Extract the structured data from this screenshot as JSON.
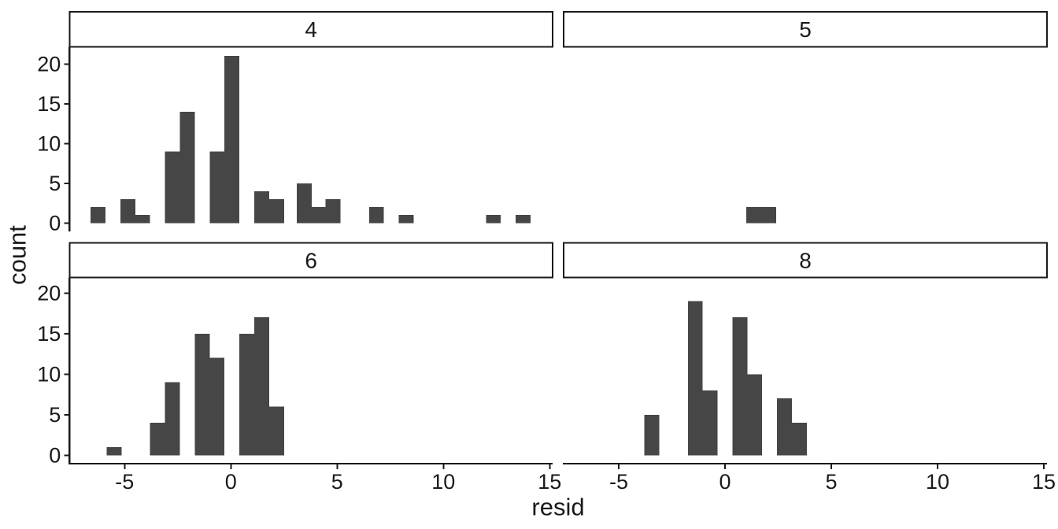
{
  "chart_data": {
    "type": "bar",
    "subtype": "faceted-histogram",
    "title": "",
    "xlabel": "resid",
    "ylabel": "count",
    "x_ticks": [
      -5,
      0,
      5,
      10,
      15
    ],
    "y_ticks": [
      0,
      5,
      10,
      15,
      20
    ],
    "x_range": [
      -7.6,
      15.15
    ],
    "y_range": [
      -1.05,
      22.2
    ],
    "binwidth": 0.7,
    "grid": false,
    "legend_position": "none",
    "colors": {
      "bar_fill": "#464646",
      "axis_line": "#1a1a1a",
      "text": "#1a1a1a",
      "strip_border": "#1a1a1a",
      "strip_fill": "#ffffff",
      "background": "#ffffff"
    },
    "facets": [
      {
        "label": "4",
        "bins": [
          {
            "x": -6.25,
            "n": 2
          },
          {
            "x": -4.85,
            "n": 3
          },
          {
            "x": -4.15,
            "n": 1
          },
          {
            "x": -2.75,
            "n": 9
          },
          {
            "x": -2.05,
            "n": 14
          },
          {
            "x": -0.65,
            "n": 9
          },
          {
            "x": 0.05,
            "n": 21
          },
          {
            "x": 1.45,
            "n": 4
          },
          {
            "x": 2.15,
            "n": 3
          },
          {
            "x": 3.45,
            "n": 5
          },
          {
            "x": 4.1,
            "n": 2
          },
          {
            "x": 4.8,
            "n": 3
          },
          {
            "x": 6.85,
            "n": 2
          },
          {
            "x": 8.25,
            "n": 1
          },
          {
            "x": 12.35,
            "n": 1
          },
          {
            "x": 13.75,
            "n": 1
          }
        ]
      },
      {
        "label": "5",
        "bins": [
          {
            "x": 1.35,
            "n": 2
          },
          {
            "x": 2.05,
            "n": 2
          }
        ]
      },
      {
        "label": "6",
        "bins": [
          {
            "x": -5.5,
            "n": 1
          },
          {
            "x": -3.45,
            "n": 4
          },
          {
            "x": -2.75,
            "n": 9
          },
          {
            "x": -1.35,
            "n": 15
          },
          {
            "x": -0.65,
            "n": 12
          },
          {
            "x": 0.75,
            "n": 15
          },
          {
            "x": 1.45,
            "n": 17
          },
          {
            "x": 2.15,
            "n": 6
          }
        ]
      },
      {
        "label": "8",
        "bins": [
          {
            "x": -3.45,
            "n": 5
          },
          {
            "x": -1.4,
            "n": 19
          },
          {
            "x": -0.7,
            "n": 8
          },
          {
            "x": 0.7,
            "n": 17
          },
          {
            "x": 1.4,
            "n": 10
          },
          {
            "x": 2.8,
            "n": 7
          },
          {
            "x": 3.5,
            "n": 4
          }
        ]
      }
    ]
  }
}
